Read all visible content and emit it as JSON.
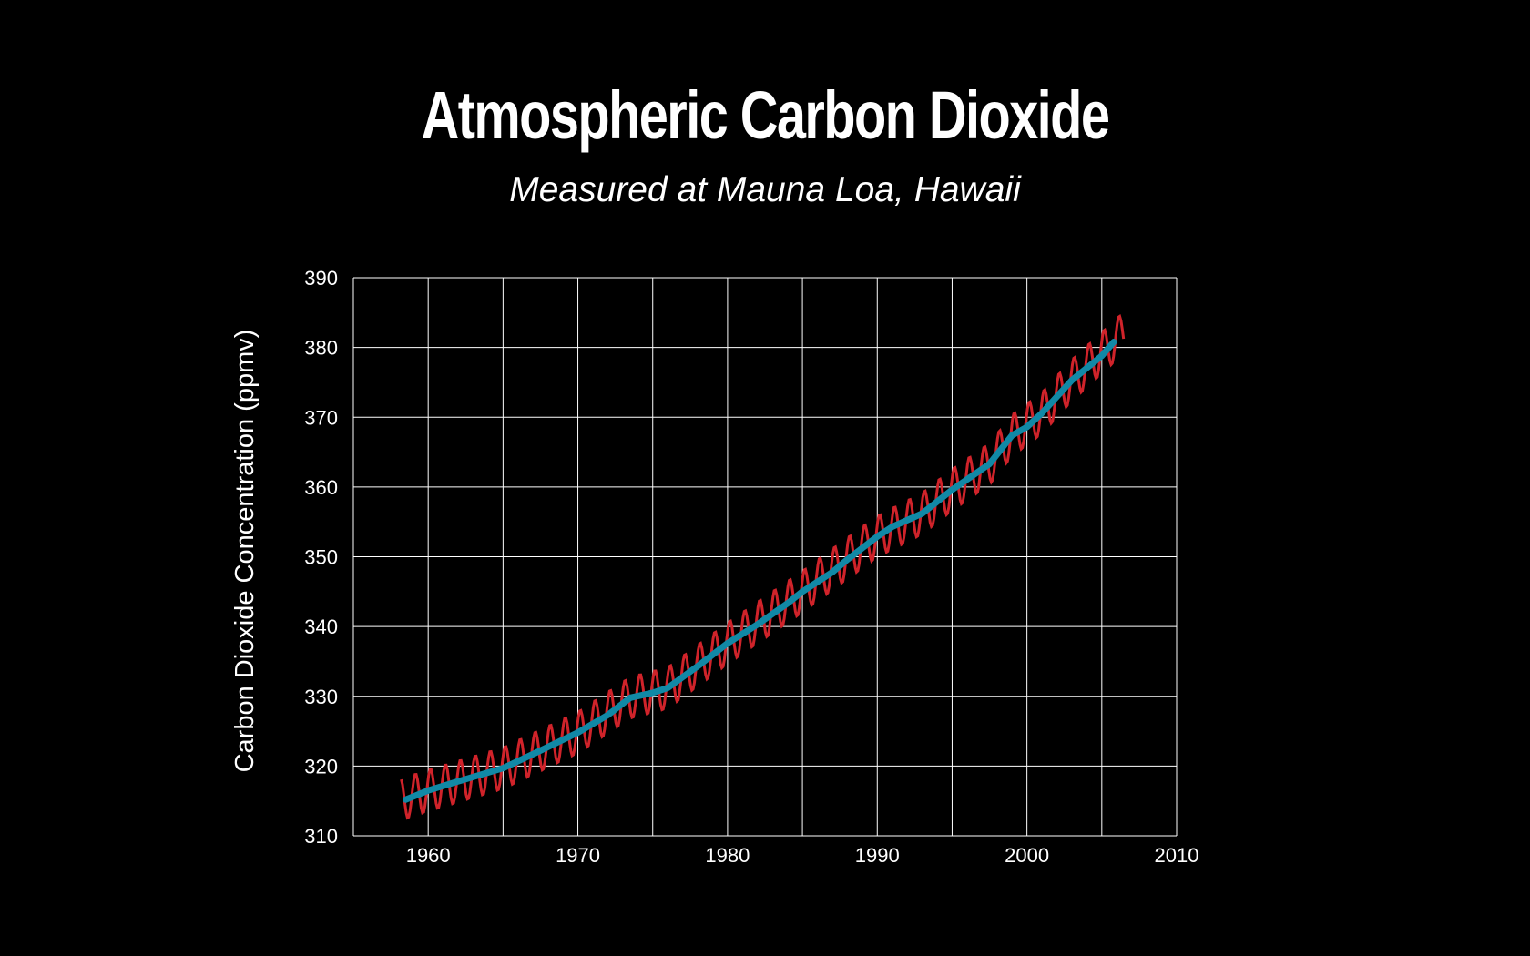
{
  "chart_data": {
    "type": "line",
    "title": "Atmospheric Carbon Dioxide",
    "subtitle": "Measured at Mauna Loa, Hawaii",
    "xlabel": "",
    "ylabel": "Carbon Dioxide Concentration (ppmv)",
    "xlim": [
      1955,
      2010
    ],
    "ylim": [
      310,
      390
    ],
    "xticks": [
      "1960",
      "1970",
      "1980",
      "1990",
      "2000",
      "2010"
    ],
    "yticks": [
      "390",
      "380",
      "370",
      "360",
      "350",
      "340",
      "330",
      "320",
      "310"
    ],
    "xtick_values": [
      1960,
      1970,
      1980,
      1990,
      2000,
      2010
    ],
    "ytick_values": [
      390,
      380,
      370,
      360,
      350,
      340,
      330,
      320,
      310
    ],
    "grid": true,
    "x_grid_values": [
      1960,
      1965,
      1970,
      1975,
      1980,
      1985,
      1990,
      1995,
      2000,
      2005,
      2010
    ],
    "y_grid_values": [
      310,
      320,
      330,
      340,
      350,
      360,
      370,
      380,
      390
    ],
    "series": [
      {
        "kind": "monthly",
        "color": "#d0232a",
        "seasonal_amplitude": 3.0,
        "x_range": [
          1958.2,
          2006.5
        ],
        "trend_x": [
          1958.2,
          1960,
          1965,
          1970,
          1973.5,
          1976,
          1980,
          1985,
          1987,
          1990,
          1993,
          1995,
          1997.5,
          1999,
          2001,
          2003,
          2006
        ],
        "trend_y": [
          315.2,
          316.5,
          319.7,
          324.8,
          329.8,
          331.2,
          337.6,
          345.0,
          348.2,
          352.9,
          356.2,
          359.6,
          363.3,
          367.4,
          370.6,
          375.3,
          381.2
        ]
      },
      {
        "kind": "annual-mean",
        "color": "#1189a6",
        "x": [
          1958.5,
          1960,
          1962,
          1965,
          1967,
          1970,
          1972,
          1973.5,
          1975,
          1976,
          1978,
          1980,
          1982,
          1984,
          1985,
          1987,
          1988,
          1990,
          1991,
          1993,
          1995,
          1997.5,
          1999,
          2000,
          2001,
          2003,
          2005,
          2005.8
        ],
        "y": [
          315.2,
          316.5,
          317.8,
          319.7,
          321.7,
          324.8,
          327.3,
          329.8,
          330.5,
          331.2,
          334.3,
          337.6,
          340.3,
          343.3,
          345.0,
          347.8,
          349.6,
          352.9,
          354.3,
          356.2,
          359.6,
          363.3,
          367.4,
          368.6,
          370.6,
          375.3,
          378.8,
          380.8
        ]
      }
    ]
  }
}
